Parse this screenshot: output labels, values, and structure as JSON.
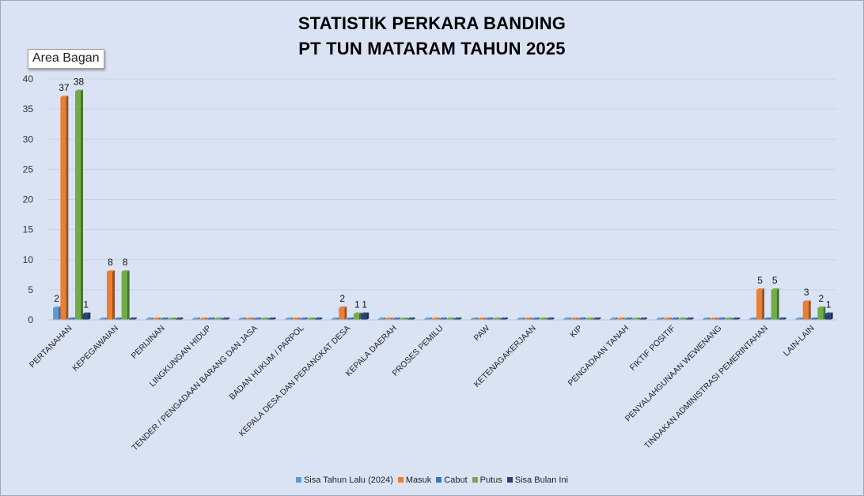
{
  "tooltip": "Area Bagan",
  "chart_data": {
    "type": "bar",
    "title": "STATISTIK PERKARA BANDING",
    "subtitle": "PT TUN MATARAM TAHUN 2025",
    "ylim": [
      0,
      40
    ],
    "yticks": [
      0,
      5,
      10,
      15,
      20,
      25,
      30,
      35,
      40
    ],
    "grid": true,
    "legend_position": "bottom",
    "categories": [
      "PERTANAHAN",
      "KEPEGAWAIAN",
      "PERIJINAN",
      "LINGKUNGAN HIDUP",
      "TENDER / PENGADAAN BARANG DAN JASA",
      "BADAN HUKUM / PARPOL",
      "KEPALA DESA DAN PERANGKAT DESA",
      "KEPALA DAERAH",
      "PROSES PEMILU",
      "PAW",
      "KETENAGAKERJAAN",
      "KIP",
      "PENGADAAN TANAH",
      "FIKTIF POSITIF",
      "PENYALAHGUNAAN WEWENANG",
      "TINDAKAN ADMINISTRASI PEMERINTAHAN",
      "LAIN-LAIN"
    ],
    "series": [
      {
        "name": "Sisa Tahun Lalu (2024)",
        "color": "#5b9bd5",
        "values": [
          2,
          0,
          0,
          0,
          0,
          0,
          0,
          0,
          0,
          0,
          0,
          0,
          0,
          0,
          0,
          0,
          0
        ]
      },
      {
        "name": "Masuk",
        "color": "#ed7d31",
        "values": [
          37,
          8,
          0,
          0,
          0,
          0,
          2,
          0,
          0,
          0,
          0,
          0,
          0,
          0,
          0,
          5,
          3
        ]
      },
      {
        "name": "Cabut",
        "color": "#4472c4",
        "values": [
          0,
          0,
          0,
          0,
          0,
          0,
          0,
          0,
          0,
          0,
          0,
          0,
          0,
          0,
          0,
          0,
          0
        ]
      },
      {
        "name": "Putus",
        "color": "#70ad47",
        "values": [
          38,
          8,
          0,
          0,
          0,
          0,
          1,
          0,
          0,
          0,
          0,
          0,
          0,
          0,
          0,
          5,
          2
        ]
      },
      {
        "name": "Sisa Bulan Ini",
        "color": "#264478",
        "values": [
          1,
          0,
          0,
          0,
          0,
          0,
          1,
          0,
          0,
          0,
          0,
          0,
          0,
          0,
          0,
          0,
          1
        ]
      }
    ]
  }
}
